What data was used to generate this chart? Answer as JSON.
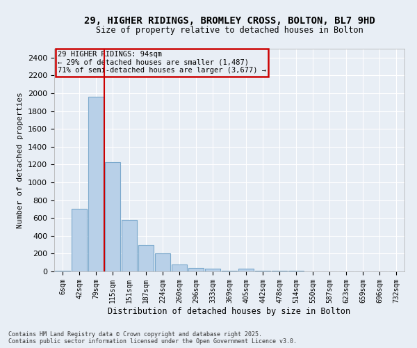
{
  "title_line1": "29, HIGHER RIDINGS, BROMLEY CROSS, BOLTON, BL7 9HD",
  "title_line2": "Size of property relative to detached houses in Bolton",
  "xlabel": "Distribution of detached houses by size in Bolton",
  "ylabel": "Number of detached properties",
  "bar_color": "#b8d0e8",
  "bar_edge_color": "#7aa8cc",
  "categories": [
    "6sqm",
    "42sqm",
    "79sqm",
    "115sqm",
    "151sqm",
    "187sqm",
    "224sqm",
    "260sqm",
    "296sqm",
    "333sqm",
    "369sqm",
    "405sqm",
    "442sqm",
    "478sqm",
    "514sqm",
    "550sqm",
    "587sqm",
    "623sqm",
    "659sqm",
    "696sqm",
    "732sqm"
  ],
  "values": [
    10,
    700,
    1960,
    1230,
    575,
    300,
    200,
    75,
    40,
    28,
    10,
    30,
    10,
    5,
    5,
    3,
    2,
    2,
    2,
    2,
    1
  ],
  "ylim": [
    0,
    2500
  ],
  "yticks": [
    0,
    200,
    400,
    600,
    800,
    1000,
    1200,
    1400,
    1600,
    1800,
    2000,
    2200,
    2400
  ],
  "annotation_title": "29 HIGHER RIDINGS: 94sqm",
  "annotation_line2": "← 29% of detached houses are smaller (1,487)",
  "annotation_line3": "71% of semi-detached houses are larger (3,677) →",
  "annotation_box_color": "#cc0000",
  "property_line_x": 2.5,
  "bg_color": "#e8eef5",
  "grid_color": "#ffffff",
  "footer_line1": "Contains HM Land Registry data © Crown copyright and database right 2025.",
  "footer_line2": "Contains public sector information licensed under the Open Government Licence v3.0."
}
